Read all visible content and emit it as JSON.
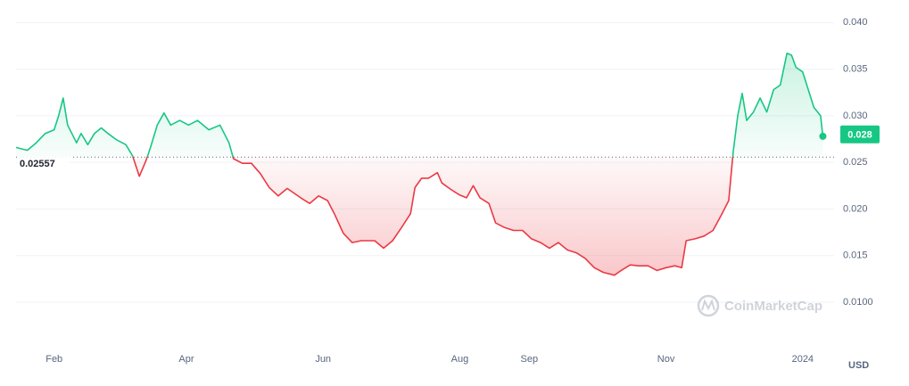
{
  "chart_data": {
    "type": "line",
    "x": [
      -17,
      -12,
      -8,
      -4,
      0,
      2,
      4,
      6,
      10,
      12,
      15,
      18,
      21,
      24,
      28,
      32,
      35,
      38,
      41,
      43,
      46,
      49,
      52,
      56,
      60,
      64,
      69,
      74,
      78,
      80,
      84,
      88,
      92,
      96,
      100,
      104,
      110,
      114,
      118,
      122,
      125,
      129,
      133,
      137,
      143,
      147,
      151,
      155,
      159,
      161,
      164,
      167,
      171,
      173,
      177,
      181,
      184,
      187,
      190,
      194,
      197,
      201,
      205,
      209,
      213,
      217,
      221,
      225,
      229,
      233,
      237,
      241,
      245,
      250,
      253,
      257,
      261,
      265,
      269,
      273,
      277,
      280,
      282,
      286,
      290,
      294,
      298,
      301,
      303,
      305,
      307,
      309,
      312,
      315,
      318,
      321,
      324,
      327,
      329,
      331,
      334,
      337,
      339,
      342,
      343
    ],
    "values": [
      0.0266,
      0.0263,
      0.0271,
      0.0281,
      0.0285,
      0.03,
      0.0319,
      0.029,
      0.0271,
      0.0281,
      0.0269,
      0.0281,
      0.0287,
      0.0281,
      0.0274,
      0.0269,
      0.0257,
      0.0235,
      0.0252,
      0.0266,
      0.029,
      0.0303,
      0.029,
      0.0295,
      0.029,
      0.0295,
      0.0285,
      0.029,
      0.0271,
      0.0254,
      0.0249,
      0.0249,
      0.0238,
      0.0223,
      0.0214,
      0.0222,
      0.0212,
      0.0206,
      0.0214,
      0.0209,
      0.0195,
      0.0174,
      0.0164,
      0.0166,
      0.0166,
      0.0158,
      0.0166,
      0.018,
      0.0195,
      0.0223,
      0.0233,
      0.0233,
      0.0239,
      0.0228,
      0.0221,
      0.0215,
      0.0212,
      0.0225,
      0.0212,
      0.0206,
      0.0185,
      0.018,
      0.0177,
      0.0177,
      0.0168,
      0.0164,
      0.0158,
      0.0164,
      0.0156,
      0.0153,
      0.0147,
      0.0137,
      0.0132,
      0.0129,
      0.0134,
      0.014,
      0.0139,
      0.0139,
      0.0134,
      0.0137,
      0.0139,
      0.0137,
      0.0166,
      0.0168,
      0.0171,
      0.0177,
      0.0195,
      0.0209,
      0.0261,
      0.03,
      0.0324,
      0.0295,
      0.0304,
      0.0319,
      0.0304,
      0.0328,
      0.0333,
      0.0367,
      0.0365,
      0.0352,
      0.0347,
      0.0324,
      0.0309,
      0.03,
      0.0278
    ],
    "baseline": 0.02557,
    "price_label": 0.028,
    "up_color": "#16c784",
    "down_color": "#ea3943",
    "xlim": [
      -17,
      348
    ],
    "xticks": [
      {
        "value": 0,
        "label": "Feb"
      },
      {
        "value": 59,
        "label": "Apr"
      },
      {
        "value": 120,
        "label": "Jun"
      },
      {
        "value": 181,
        "label": "Aug"
      },
      {
        "value": 212,
        "label": "Sep"
      },
      {
        "value": 273,
        "label": "Nov"
      },
      {
        "value": 334,
        "label": "2024"
      }
    ],
    "ylim": [
      0.0056,
      0.0407
    ],
    "yticks": [
      {
        "value": 0.04,
        "label": "0.040"
      },
      0.035,
      {
        "value": 0.03,
        "label": "0.030"
      },
      0.025,
      {
        "value": 0.02,
        "label": "0.020"
      },
      0.015,
      {
        "value": 0.01,
        "label": "0.0100"
      }
    ],
    "grid": true,
    "currency": "USD",
    "watermark": "CoinMarketCap"
  }
}
